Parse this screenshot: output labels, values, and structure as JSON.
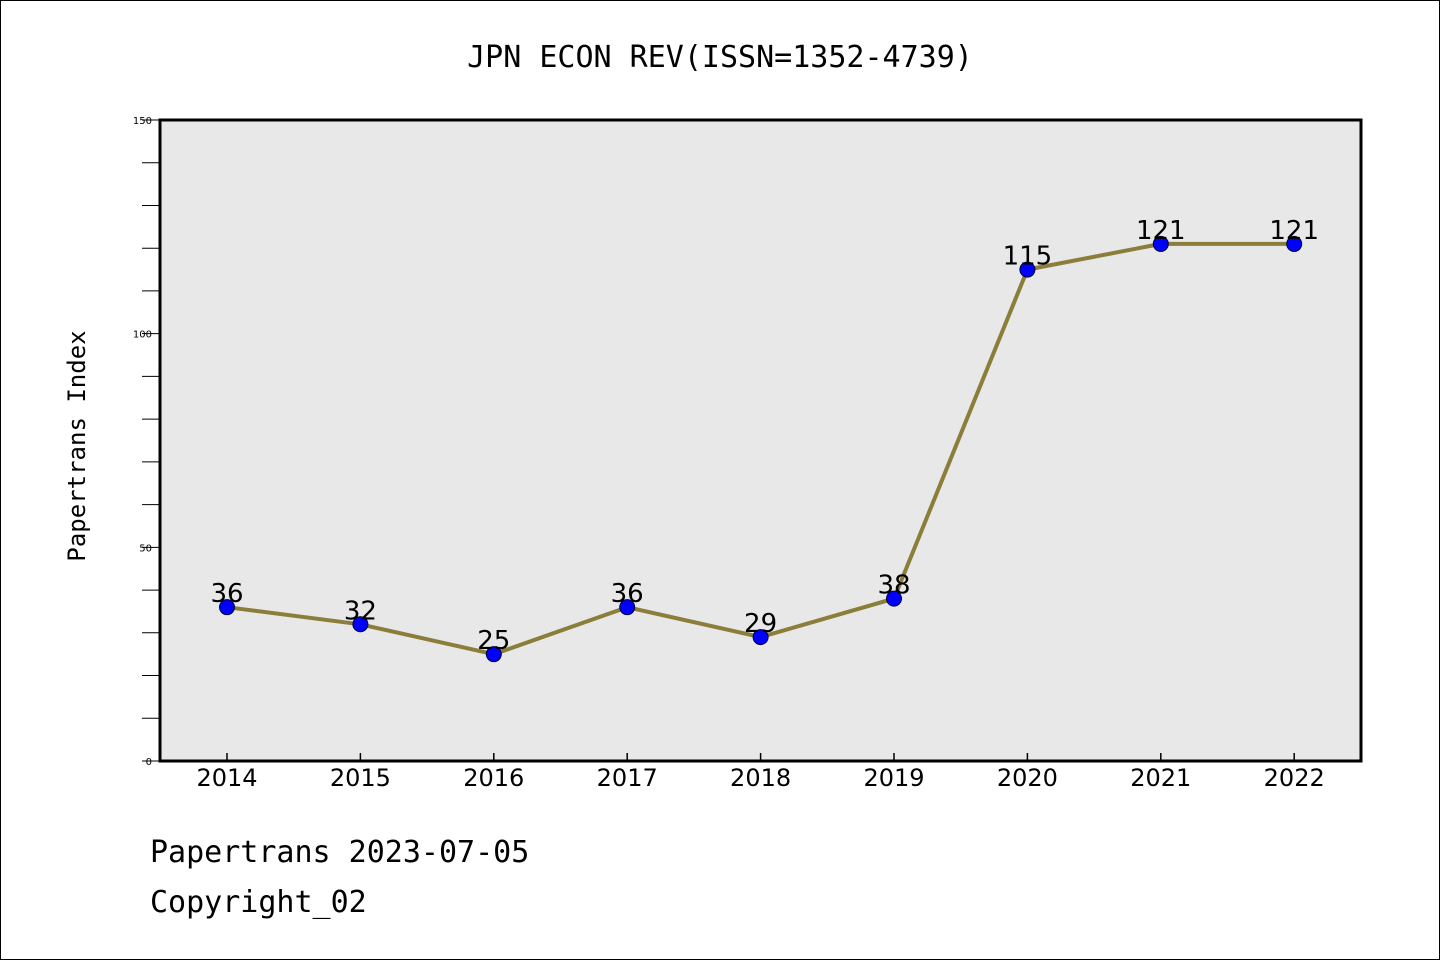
{
  "chart_data": {
    "type": "line",
    "title": "JPN ECON REV(ISSN=1352-4739)",
    "xlabel": "",
    "ylabel": "Papertrans Index",
    "categories": [
      "2014",
      "2015",
      "2016",
      "2017",
      "2018",
      "2019",
      "2020",
      "2021",
      "2022"
    ],
    "series": [
      {
        "values": [
          36,
          32,
          25,
          36,
          29,
          38,
          115,
          121,
          121
        ]
      }
    ],
    "data_labels": [
      "36",
      "32",
      "25",
      "36",
      "29",
      "38",
      "115",
      "121",
      "121"
    ],
    "ylim": [
      0,
      150
    ],
    "y_ticks": [
      "0",
      "50",
      "100",
      "150"
    ],
    "y_minor_step": 10,
    "grid": false,
    "colors": {
      "line": "#8b7d3a",
      "marker": "#0000ff",
      "plot_background": "#e8e8e8"
    }
  },
  "footer": {
    "line1": "Papertrans 2023-07-05",
    "line2": "Copyright_02"
  }
}
